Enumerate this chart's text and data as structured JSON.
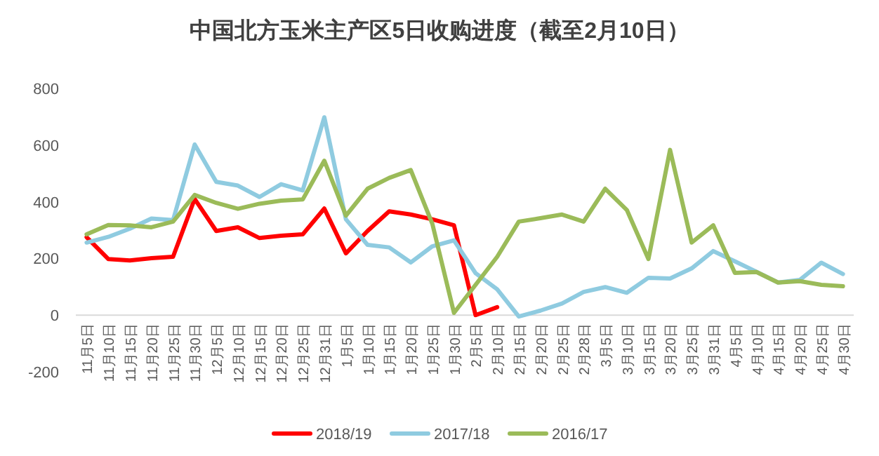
{
  "chart_data": {
    "type": "line",
    "title": "中国北方玉米主产区5日收购进度（截至2月10日）",
    "categories": [
      "11月5日",
      "11月10日",
      "11月15日",
      "11月20日",
      "11月25日",
      "11月30日",
      "12月5日",
      "12月10日",
      "12月15日",
      "12月20日",
      "12月25日",
      "12月31日",
      "1月5日",
      "1月10日",
      "1月15日",
      "1月20日",
      "1月25日",
      "1月30日",
      "2月5日",
      "2月10日",
      "2月15日",
      "2月20日",
      "2月25日",
      "2月28日",
      "3月5日",
      "3月10日",
      "3月15日",
      "3月20日",
      "3月25日",
      "3月31日",
      "4月5日",
      "4月10日",
      "4月15日",
      "4月20日",
      "4月25日",
      "4月30日"
    ],
    "series": [
      {
        "name": "2018/19",
        "color": "#ff0000",
        "values": [
          275,
          198,
          193,
          201,
          206,
          410,
          297,
          310,
          272,
          280,
          285,
          376,
          218,
          297,
          366,
          355,
          338,
          317,
          0,
          28,
          null,
          null,
          null,
          null,
          null,
          null,
          null,
          null,
          null,
          null,
          null,
          null,
          null,
          null,
          null,
          null
        ]
      },
      {
        "name": "2017/18",
        "color": "#8fcbe0",
        "values": [
          256,
          276,
          305,
          341,
          335,
          602,
          470,
          457,
          417,
          462,
          440,
          698,
          338,
          248,
          239,
          186,
          243,
          264,
          148,
          91,
          -5,
          16,
          41,
          82,
          99,
          79,
          132,
          129,
          165,
          226,
          190,
          153,
          115,
          124,
          185,
          145
        ]
      },
      {
        "name": "2016/17",
        "color": "#9bbb59",
        "values": [
          285,
          318,
          317,
          310,
          330,
          424,
          396,
          375,
          393,
          404,
          408,
          545,
          351,
          446,
          484,
          512,
          322,
          8,
          107,
          206,
          330,
          342,
          355,
          330,
          446,
          371,
          198,
          583,
          256,
          317,
          149,
          152,
          115,
          120,
          107,
          102
        ]
      }
    ],
    "ylim": [
      -200,
      800
    ],
    "yticks": [
      -200,
      0,
      200,
      400,
      600,
      800
    ],
    "grid": false,
    "legend": "bottom"
  }
}
